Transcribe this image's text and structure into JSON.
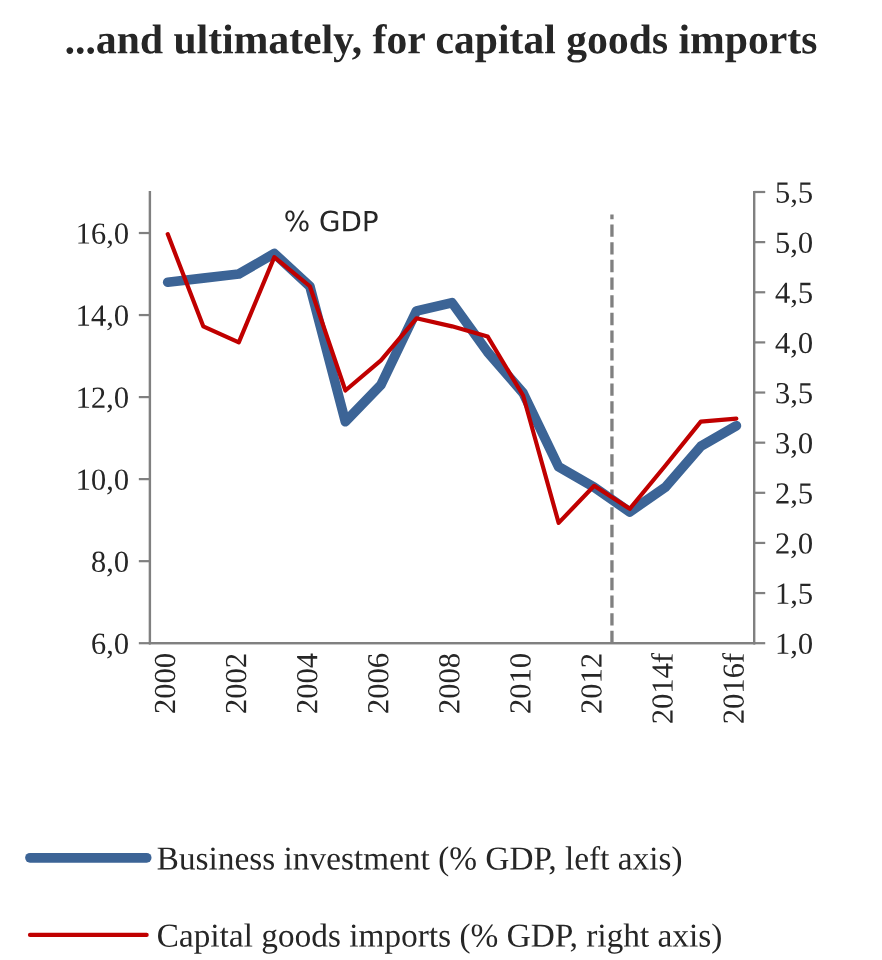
{
  "chart_data": {
    "type": "line",
    "title": "...and ultimately, for capital goods imports",
    "annotations": [
      "% GDP"
    ],
    "categories": [
      "2000",
      null,
      "2002",
      null,
      "2004",
      null,
      "2006",
      null,
      "2008",
      null,
      "2010",
      null,
      "2012",
      null,
      "2014f",
      null,
      "2016f"
    ],
    "series": [
      {
        "name": "Business investment (% GDP, left axis)",
        "color": "#3c6496",
        "values": [
          14.8,
          14.9,
          15.0,
          15.5,
          14.7,
          11.4,
          12.3,
          14.1,
          14.3,
          13.1,
          12.1,
          10.3,
          9.8,
          9.2,
          9.8,
          10.8,
          11.3
        ]
      },
      {
        "name": "Capital goods imports (% GDP, right axis)",
        "color": "#c00000",
        "axis": "y2",
        "values": [
          5.08,
          4.16,
          4.0,
          4.85,
          4.56,
          3.52,
          3.82,
          4.24,
          4.16,
          4.06,
          3.47,
          2.2,
          2.57,
          2.34,
          2.77,
          3.21,
          3.24
        ]
      }
    ],
    "ylim": [
      6,
      17
    ],
    "yticks": [
      {
        "value": 6,
        "label": "6,0"
      },
      {
        "value": 8,
        "label": "8,0"
      },
      {
        "value": 10,
        "label": "10,0"
      },
      {
        "value": 12,
        "label": "12,0"
      },
      {
        "value": 14,
        "label": "14,0"
      },
      {
        "value": 16,
        "label": "16,0"
      }
    ],
    "y2lim": [
      1,
      5.5
    ],
    "y2ticks": [
      {
        "value": 1,
        "label": "1,0"
      },
      {
        "value": 1.5,
        "label": "1,5"
      },
      {
        "value": 2,
        "label": "2,0"
      },
      {
        "value": 2.5,
        "label": "2,5"
      },
      {
        "value": 3,
        "label": "3,0"
      },
      {
        "value": 3.5,
        "label": "3,5"
      },
      {
        "value": 4,
        "label": "4,0"
      },
      {
        "value": 4.5,
        "label": "4,5"
      },
      {
        "value": 5,
        "label": "5,0"
      },
      {
        "value": 5.5,
        "label": "5,5"
      }
    ],
    "grid": false,
    "legend": "bottom",
    "marker": "none",
    "line_style": "solid"
  }
}
